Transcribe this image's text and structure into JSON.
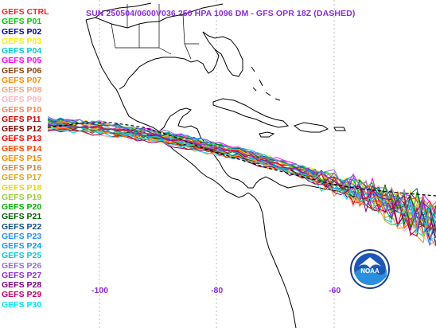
{
  "title": "SUN 250504/0600V036  250 HPA 1096 DM - GFS OPR 18Z (DASHED)",
  "legend": [
    {
      "label": "GEFS CTRL",
      "color": "#ff2020"
    },
    {
      "label": "GEFS P01",
      "color": "#00cc00"
    },
    {
      "label": "GEFS P02",
      "color": "#0000a0"
    },
    {
      "label": "GEFS P03",
      "color": "#ffee00"
    },
    {
      "label": "GEFS P04",
      "color": "#00c8c8"
    },
    {
      "label": "GEFS P05",
      "color": "#ff00ff"
    },
    {
      "label": "GEFS P06",
      "color": "#8b4513"
    },
    {
      "label": "GEFS P07",
      "color": "#ff8c00"
    },
    {
      "label": "GEFS P08",
      "color": "#ffa07a"
    },
    {
      "label": "GEFS P09",
      "color": "#ffb6c1"
    },
    {
      "label": "GEFS P10",
      "color": "#ff7f50"
    },
    {
      "label": "GEFS P11",
      "color": "#e00000"
    },
    {
      "label": "GEFS P12",
      "color": "#800000"
    },
    {
      "label": "GEFS P13",
      "color": "#ff0000"
    },
    {
      "label": "GEFS P14",
      "color": "#ff4500"
    },
    {
      "label": "GEFS P15",
      "color": "#ff8c00"
    },
    {
      "label": "GEFS P16",
      "color": "#cd853f"
    },
    {
      "label": "GEFS P17",
      "color": "#daa520"
    },
    {
      "label": "GEFS P18",
      "color": "#e8d800"
    },
    {
      "label": "GEFS P19",
      "color": "#9acd32"
    },
    {
      "label": "GEFS P20",
      "color": "#00b000"
    },
    {
      "label": "GEFS P21",
      "color": "#006400"
    },
    {
      "label": "GEFS P22",
      "color": "#104e8b"
    },
    {
      "label": "GEFS P23",
      "color": "#1e90ff"
    },
    {
      "label": "GEFS P24",
      "color": "#00a0ff"
    },
    {
      "label": "GEFS P25",
      "color": "#00ced1"
    },
    {
      "label": "GEFS P26",
      "color": "#9370db"
    },
    {
      "label": "GEFS P27",
      "color": "#8a2be2"
    },
    {
      "label": "GEFS P28",
      "color": "#800080"
    },
    {
      "label": "GEFS P29",
      "color": "#c00060"
    },
    {
      "label": "GEFS P30",
      "color": "#00e5ee"
    }
  ],
  "lon_labels": [
    "-100",
    "-80",
    "-60"
  ],
  "logo": {
    "text": "NOAA",
    "icon": "noaa-logo"
  },
  "colors": {
    "title": "#8a2be2",
    "coast": "#000000",
    "gfs_opr": "#000000"
  }
}
